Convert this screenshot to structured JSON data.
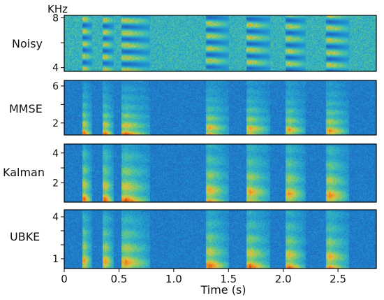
{
  "chart_data": {
    "type": "heatmap",
    "unit_label": "KHz",
    "xlabel": "Time (s)",
    "xlim": [
      0,
      2.85
    ],
    "x_ticks": [
      0,
      0.5,
      1.0,
      1.5,
      2.0,
      2.5
    ],
    "x_tick_labels": [
      "0",
      "0.5",
      "1.0",
      "1.5",
      "2.0",
      "2.5"
    ],
    "colormap": [
      "#1f2a86",
      "#2157b8",
      "#1f8fd0",
      "#33b7c2",
      "#7ccc6e",
      "#e4c43c",
      "#f07a1c",
      "#cf2a12"
    ],
    "speech_segments_s": [
      [
        0.17,
        0.25
      ],
      [
        0.36,
        0.45
      ],
      [
        0.53,
        0.78
      ],
      [
        1.3,
        1.5
      ],
      [
        1.67,
        1.88
      ],
      [
        2.03,
        2.2
      ],
      [
        2.4,
        2.6
      ]
    ],
    "panels": [
      {
        "label": "Noisy",
        "ylim": [
          3.7,
          8.2
        ],
        "y_ticks": [
          4,
          6,
          8
        ],
        "y_tick_labels": [
          "4",
          "",
          "8"
        ]
      },
      {
        "label": "MMSE",
        "ylim": [
          0.7,
          6.6
        ],
        "y_ticks": [
          2,
          4,
          6
        ],
        "y_tick_labels": [
          "2",
          "",
          "6"
        ]
      },
      {
        "label": "Kalman",
        "ylim": [
          0.7,
          4.6
        ],
        "y_ticks": [
          2,
          3,
          4
        ],
        "y_tick_labels": [
          "2",
          "",
          "4"
        ]
      },
      {
        "label": "UBKE",
        "ylim": [
          0.3,
          4.5
        ],
        "y_ticks": [
          1,
          2,
          3,
          4
        ],
        "y_tick_labels": [
          "1",
          "",
          "",
          "4"
        ]
      }
    ]
  }
}
